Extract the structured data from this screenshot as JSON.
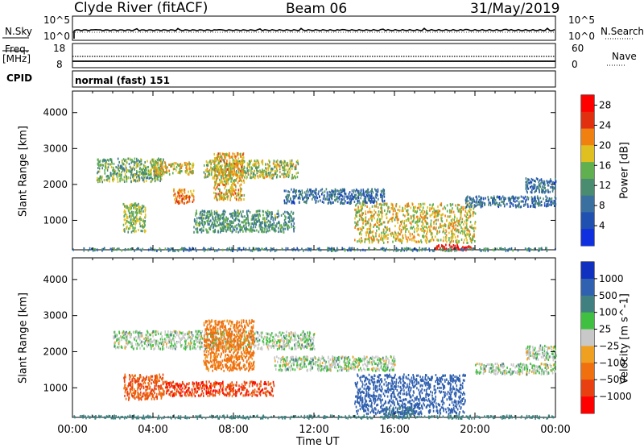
{
  "header": {
    "station": "Clyde River (fitACF)",
    "beam": "Beam 06",
    "date": "31/May/2019"
  },
  "top_panels": {
    "nsky_label": "N.Sky",
    "nsearch_label": "N.Search",
    "nsky_ticks": [
      "10^5",
      "10^0"
    ],
    "nsearch_ticks": [
      "10^5",
      "10^0"
    ],
    "freq_label_1": "Freq.",
    "freq_label_2": "[MHz]",
    "freq_ticks": [
      "18",
      "8"
    ],
    "nave_label": "Nave",
    "nave_ticks": [
      "60",
      "0"
    ],
    "cpid_label": "CPID",
    "cpid_text": "normal (fast) 151"
  },
  "x_axis": {
    "label": "Time UT",
    "ticks": [
      "00:00",
      "04:00",
      "08:00",
      "12:00",
      "16:00",
      "20:00",
      "00:00"
    ]
  },
  "colors": {
    "power_scale": [
      "#1030e0",
      "#2050b0",
      "#3a70a0",
      "#4a8c70",
      "#60b050",
      "#e0c020",
      "#f08010",
      "#e03010",
      "#ff0000"
    ],
    "velocity_scale": [
      "#1030c0",
      "#3060b0",
      "#408080",
      "#40c040",
      "#c8c8c8",
      "#f0a020",
      "#f07010",
      "#e84010",
      "#ff0000"
    ],
    "trace": "#000000"
  },
  "chart_data": [
    {
      "type": "heatmap",
      "title": "",
      "xlabel": "",
      "ylabel": "Slant Range [km]",
      "xlim": [
        0,
        24
      ],
      "ylim": [
        180,
        4600
      ],
      "yticks": [
        "1000",
        "2000",
        "3000",
        "4000"
      ],
      "colorbar": {
        "label": "Power [dB]",
        "range": [
          0,
          30
        ],
        "ticks": [
          "4",
          "8",
          "12",
          "16",
          "20",
          "24",
          "28"
        ]
      },
      "echo_regions": [
        {
          "t": [
            1.2,
            4.5
          ],
          "r": [
            2100,
            2750
          ],
          "level": 14
        },
        {
          "t": [
            4.0,
            6.0
          ],
          "r": [
            2300,
            2650
          ],
          "level": 18
        },
        {
          "t": [
            6.5,
            11.2
          ],
          "r": [
            2200,
            2700
          ],
          "level": 16
        },
        {
          "t": [
            7.0,
            8.5
          ],
          "r": [
            1600,
            2900
          ],
          "level": 19
        },
        {
          "t": [
            2.5,
            3.6
          ],
          "r": [
            700,
            1500
          ],
          "level": 15
        },
        {
          "t": [
            5.0,
            6.0
          ],
          "r": [
            1500,
            1900
          ],
          "level": 22
        },
        {
          "t": [
            6.0,
            11.0
          ],
          "r": [
            700,
            1300
          ],
          "level": 12
        },
        {
          "t": [
            10.5,
            15.5
          ],
          "r": [
            1500,
            1900
          ],
          "level": 8
        },
        {
          "t": [
            14.0,
            20.0
          ],
          "r": [
            400,
            1500
          ],
          "level": 18
        },
        {
          "t": [
            18.0,
            20.0
          ],
          "r": [
            200,
            350
          ],
          "level": 28
        },
        {
          "t": [
            19.5,
            24.0
          ],
          "r": [
            1400,
            1700
          ],
          "level": 8
        },
        {
          "t": [
            22.5,
            24.0
          ],
          "r": [
            1800,
            2200
          ],
          "level": 8
        },
        {
          "t": [
            0.0,
            24.0
          ],
          "r": [
            180,
            260
          ],
          "level": 10
        }
      ]
    },
    {
      "type": "heatmap",
      "title": "",
      "xlabel": "Time UT",
      "ylabel": "Slant Range [km]",
      "xlim": [
        0,
        24
      ],
      "ylim": [
        180,
        4600
      ],
      "yticks": [
        "1000",
        "2000",
        "3000",
        "4000"
      ],
      "colorbar": {
        "label": "Velocity [m s^-1]",
        "ticks": [
          "1000",
          "500",
          "100",
          "25",
          "−25",
          "−100",
          "−500",
          "−1000"
        ]
      },
      "echo_regions": [
        {
          "t": [
            2.0,
            12.0
          ],
          "r": [
            2100,
            2600
          ],
          "level": 0
        },
        {
          "t": [
            6.5,
            9.0
          ],
          "r": [
            1500,
            2900
          ],
          "level": -150
        },
        {
          "t": [
            2.5,
            4.5
          ],
          "r": [
            700,
            1400
          ],
          "level": -300
        },
        {
          "t": [
            4.5,
            10.0
          ],
          "r": [
            800,
            1200
          ],
          "level": -400
        },
        {
          "t": [
            10.0,
            16.0
          ],
          "r": [
            1500,
            1900
          ],
          "level": 0
        },
        {
          "t": [
            14.0,
            19.5
          ],
          "r": [
            300,
            1400
          ],
          "level": 300
        },
        {
          "t": [
            15.5,
            17.0
          ],
          "r": [
            200,
            500
          ],
          "level": 90
        },
        {
          "t": [
            20.0,
            24.0
          ],
          "r": [
            1400,
            1700
          ],
          "level": 0
        },
        {
          "t": [
            22.5,
            24.0
          ],
          "r": [
            1800,
            2200
          ],
          "level": 0
        },
        {
          "t": [
            0.0,
            24.0
          ],
          "r": [
            180,
            260
          ],
          "level": 60
        }
      ]
    }
  ]
}
